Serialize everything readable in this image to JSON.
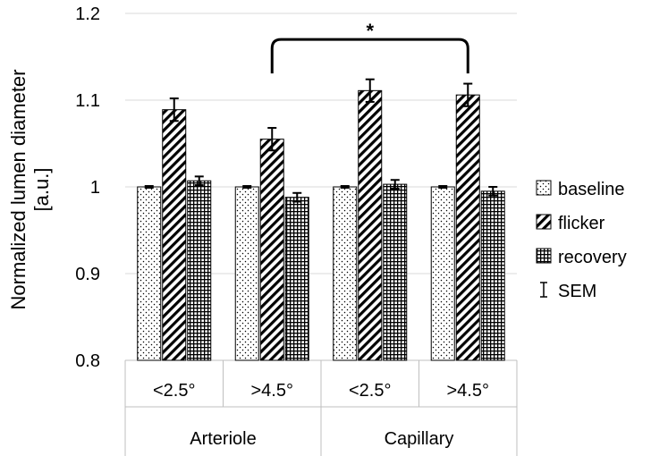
{
  "chart_data": {
    "type": "bar",
    "title": "",
    "ylabel_lines": [
      "Normalized lumen diameter",
      "[a.u.]"
    ],
    "xlabel": "",
    "ylim": [
      0.8,
      1.2
    ],
    "yticks": [
      0.8,
      0.9,
      1,
      1.1,
      1.2
    ],
    "ytick_labels": [
      "0.8",
      "0.9",
      "1",
      "1.1",
      "1.2"
    ],
    "categories": [
      "<2.5°",
      ">4.5°",
      "<2.5°",
      ">4.5°"
    ],
    "groups": [
      {
        "label": "Arteriole",
        "span": [
          0,
          1
        ]
      },
      {
        "label": "Capillary",
        "span": [
          2,
          3
        ]
      }
    ],
    "series": [
      {
        "name": "baseline",
        "pattern": "dots",
        "values": [
          1.0,
          1.0,
          1.0,
          1.0
        ],
        "errors": [
          0.001,
          0.001,
          0.001,
          0.001
        ]
      },
      {
        "name": "flicker",
        "pattern": "diagonal",
        "values": [
          1.089,
          1.055,
          1.111,
          1.106
        ],
        "errors": [
          0.013,
          0.013,
          0.013,
          0.013
        ]
      },
      {
        "name": "recovery",
        "pattern": "grid",
        "values": [
          1.007,
          0.988,
          1.003,
          0.995
        ],
        "errors": [
          0.005,
          0.005,
          0.005,
          0.005
        ]
      }
    ],
    "legend": {
      "position": "right",
      "entries": [
        "baseline",
        "flicker",
        "recovery"
      ],
      "sem_label": "SEM"
    },
    "annotation": {
      "text": "*",
      "from_category": 1,
      "to_category": 3,
      "series": "flicker",
      "level": 1.17
    },
    "grid": true,
    "colors": {
      "bar_stroke": "#000000",
      "grid": "#d9d9d9",
      "axis": "#bfbfbf"
    }
  }
}
